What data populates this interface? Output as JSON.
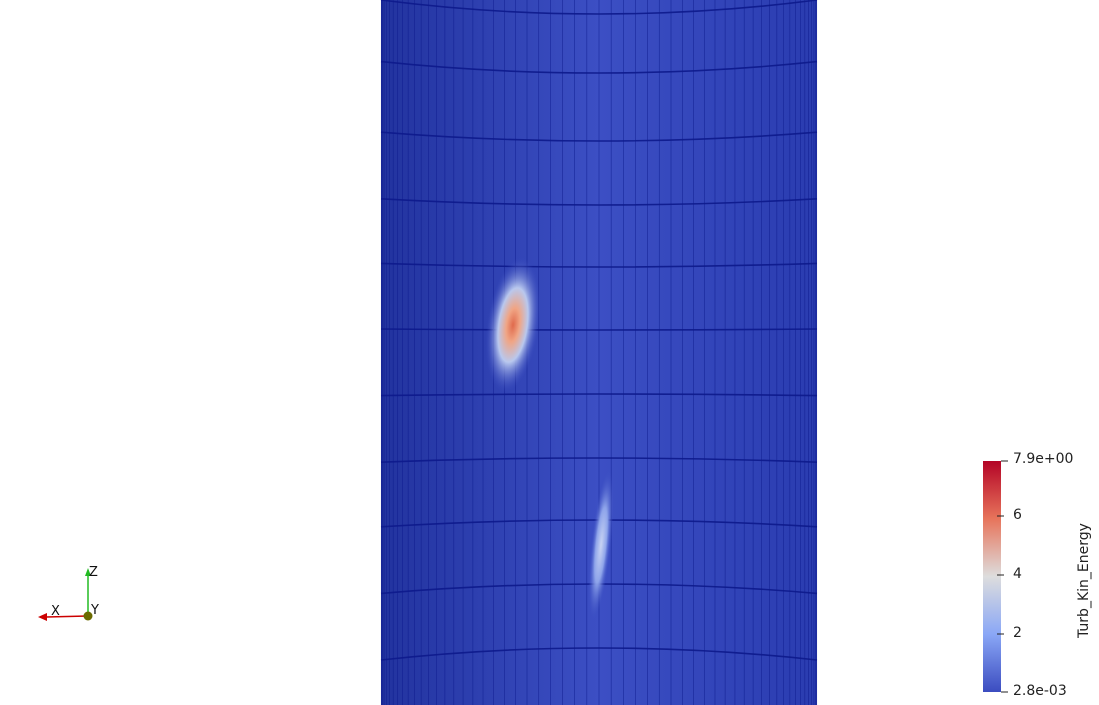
{
  "scalar_bar": {
    "title": "Turb_Kin_Energy",
    "max_label": "7.9e+00",
    "min_label": "2.8e-03",
    "tick_labels": [
      "6",
      "4",
      "2"
    ],
    "colors": {
      "high": "#b40426",
      "upper": "#e7745b",
      "mid": "#dddddd",
      "lower": "#6f92f3",
      "low": "#3b4cc0"
    }
  },
  "orientation_axes": {
    "x_label": "X",
    "y_label": "Y",
    "z_label": "Z",
    "x_color": "#cc0000",
    "y_color": "#6b6b00",
    "z_color": "#22bb22"
  },
  "surface": {
    "base_color": "#2a3db3",
    "edge_color": "#0d1a8c"
  }
}
